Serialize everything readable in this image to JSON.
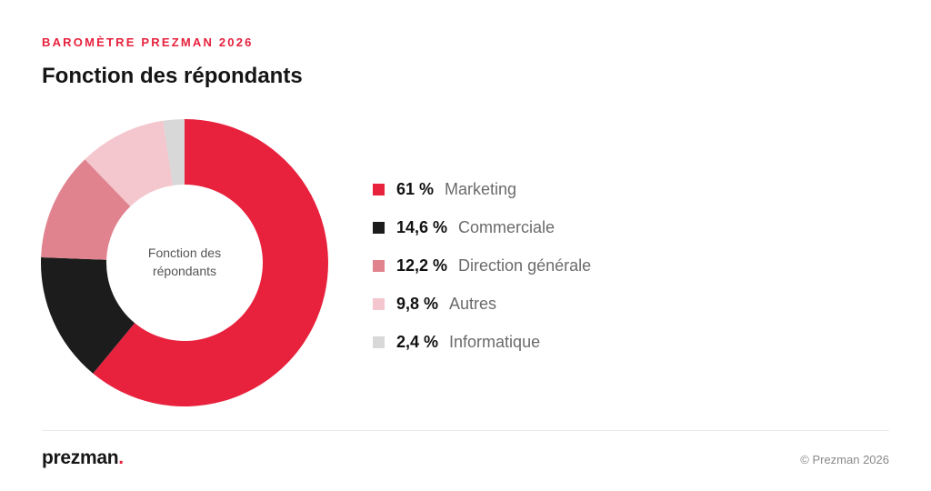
{
  "header": {
    "kicker": "BAROMÈTRE PREZMAN 2026",
    "title": "Fonction des répondants"
  },
  "chart_data": {
    "type": "pie",
    "title": "Fonction des répondants",
    "center_label": [
      "Fonction des",
      "répondants"
    ],
    "categories": [
      "Marketing",
      "Commerciale",
      "Direction générale",
      "Autres",
      "Informatique"
    ],
    "values": [
      61,
      14.6,
      12.2,
      9.8,
      2.4
    ],
    "value_labels": [
      "61 %",
      "14,6 %",
      "12,2 %",
      "9,8 %",
      "2,4 %"
    ],
    "colors": [
      "#e8213d",
      "#1c1c1c",
      "#e0838f",
      "#f3c7cd",
      "#d8d8d8"
    ],
    "donut": true,
    "legend": "right"
  },
  "footer": {
    "brand": "prezman",
    "brand_dot": ".",
    "copyright": "© Prezman 2026"
  }
}
